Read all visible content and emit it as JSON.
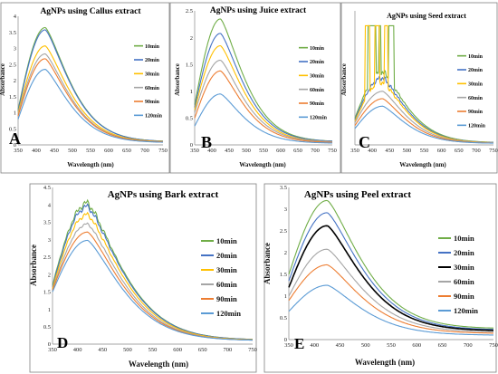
{
  "colors": {
    "10min": "#70ad47",
    "20min": "#4472c4",
    "30min_yellow": "#ffc000",
    "30min_black": "#000000",
    "60min": "#a5a5a5",
    "90min": "#ed7d31",
    "120min": "#5b9bd5",
    "frame": "#7f7f7f"
  },
  "chart_data": [
    {
      "type": "line",
      "panel_letter": "A",
      "title": "AgNPs using Callus extract",
      "xlabel": "Wavelength (nm)",
      "ylabel": "Absorbance",
      "xlim": [
        350,
        750
      ],
      "ylim": [
        0,
        4
      ],
      "xticks": [
        350,
        400,
        450,
        500,
        550,
        600,
        650,
        700,
        750
      ],
      "yticks": [
        0,
        0.5,
        1,
        1.5,
        2,
        2.5,
        3,
        3.5,
        4
      ],
      "legend_position": "right",
      "series": [
        {
          "name": "10min",
          "color_key": "10min",
          "peak_x": 425,
          "peak_y": 3.65,
          "start_y": 1.1,
          "end_y": 0.1,
          "noise": 0
        },
        {
          "name": "20min",
          "color_key": "20min",
          "peak_x": 425,
          "peak_y": 3.58,
          "start_y": 1.05,
          "end_y": 0.1,
          "noise": 0
        },
        {
          "name": "30min",
          "color_key": "30min_yellow",
          "peak_x": 425,
          "peak_y": 3.08,
          "start_y": 1.0,
          "end_y": 0.09,
          "noise": 0
        },
        {
          "name": "60min",
          "color_key": "60min",
          "peak_x": 425,
          "peak_y": 2.83,
          "start_y": 0.95,
          "end_y": 0.08,
          "noise": 0
        },
        {
          "name": "90min",
          "color_key": "90min",
          "peak_x": 425,
          "peak_y": 2.68,
          "start_y": 0.9,
          "end_y": 0.08,
          "noise": 0
        },
        {
          "name": "120min",
          "color_key": "120min",
          "peak_x": 425,
          "peak_y": 2.35,
          "start_y": 0.8,
          "end_y": 0.07,
          "noise": 0
        }
      ]
    },
    {
      "type": "line",
      "panel_letter": "B",
      "title": "AgNPs using Juice extract",
      "xlabel": "Wavelength (nm)",
      "ylabel": "Absorbance",
      "xlim": [
        350,
        750
      ],
      "ylim": [
        0,
        2.5
      ],
      "xticks": [
        350,
        400,
        450,
        500,
        550,
        600,
        650,
        700,
        750
      ],
      "yticks": [
        0,
        0.5,
        1,
        1.5,
        2,
        2.5
      ],
      "legend_position": "right",
      "series": [
        {
          "name": "10min",
          "color_key": "10min",
          "peak_x": 425,
          "peak_y": 2.35,
          "start_y": 0.75,
          "end_y": 0.06,
          "noise": 0
        },
        {
          "name": "20min",
          "color_key": "20min",
          "peak_x": 425,
          "peak_y": 2.08,
          "start_y": 0.7,
          "end_y": 0.06,
          "noise": 0
        },
        {
          "name": "30min",
          "color_key": "30min_yellow",
          "peak_x": 425,
          "peak_y": 1.85,
          "start_y": 0.65,
          "end_y": 0.05,
          "noise": 0
        },
        {
          "name": "60min",
          "color_key": "60min",
          "peak_x": 425,
          "peak_y": 1.58,
          "start_y": 0.6,
          "end_y": 0.05,
          "noise": 0
        },
        {
          "name": "90min",
          "color_key": "90min",
          "peak_x": 425,
          "peak_y": 1.38,
          "start_y": 0.5,
          "end_y": 0.04,
          "noise": 0
        },
        {
          "name": "120min",
          "color_key": "120min",
          "peak_x": 425,
          "peak_y": 0.95,
          "start_y": 0.35,
          "end_y": 0.03,
          "noise": 0
        }
      ]
    },
    {
      "type": "line",
      "panel_letter": "C",
      "title": "AgNPs using Seed extract",
      "xlabel": "Wavelength (nm)",
      "ylabel": "Absorbance",
      "xlim": [
        350,
        750
      ],
      "ylim": [
        0,
        9
      ],
      "xticks": [
        350,
        400,
        450,
        500,
        550,
        600,
        650,
        700,
        750
      ],
      "yticks": [],
      "legend_position": "right",
      "series": [
        {
          "name": "10min",
          "color_key": "10min",
          "peak_x": 430,
          "peak_y": 4.9,
          "start_y": 1.8,
          "end_y": 0.15,
          "noise": 0.25,
          "saturation": [
            [
              388,
              410
            ],
            [
              420,
              425
            ],
            [
              448,
              463
            ]
          ],
          "sat_y": 8.0
        },
        {
          "name": "20min",
          "color_key": "20min",
          "peak_x": 430,
          "peak_y": 4.5,
          "start_y": 1.7,
          "end_y": 0.14,
          "noise": 0.2
        },
        {
          "name": "30min",
          "color_key": "30min_yellow",
          "peak_x": 430,
          "peak_y": 4.2,
          "start_y": 1.6,
          "end_y": 0.13,
          "noise": 0.2,
          "saturation": [
            [
              380,
              393
            ],
            [
              408,
              420
            ],
            [
              435,
              445
            ]
          ],
          "sat_y": 8.0
        },
        {
          "name": "60min",
          "color_key": "60min",
          "peak_x": 430,
          "peak_y": 3.6,
          "start_y": 1.5,
          "end_y": 0.12,
          "noise": 0
        },
        {
          "name": "90min",
          "color_key": "90min",
          "peak_x": 430,
          "peak_y": 3.1,
          "start_y": 1.3,
          "end_y": 0.11,
          "noise": 0
        },
        {
          "name": "120min",
          "color_key": "120min",
          "peak_x": 430,
          "peak_y": 2.6,
          "start_y": 1.1,
          "end_y": 0.1,
          "noise": 0
        }
      ]
    },
    {
      "type": "line",
      "panel_letter": "D",
      "title": "AgNPs using Bark extract",
      "xlabel": "Wavelength (nm)",
      "ylabel": "Absorbance",
      "xlim": [
        350,
        750
      ],
      "ylim": [
        0,
        4.5
      ],
      "xticks": [
        350,
        400,
        450,
        500,
        550,
        600,
        650,
        700,
        750
      ],
      "yticks": [
        0,
        0.5,
        1,
        1.5,
        2,
        2.5,
        3,
        3.5,
        4,
        4.5
      ],
      "legend_position": "right",
      "series": [
        {
          "name": "10min",
          "color_key": "10min",
          "peak_x": 420,
          "peak_y": 4.05,
          "start_y": 1.7,
          "end_y": 0.12,
          "noise": 0.12
        },
        {
          "name": "20min",
          "color_key": "20min",
          "peak_x": 420,
          "peak_y": 3.95,
          "start_y": 1.65,
          "end_y": 0.12,
          "noise": 0.1
        },
        {
          "name": "30min",
          "color_key": "30min_yellow",
          "peak_x": 420,
          "peak_y": 3.72,
          "start_y": 1.6,
          "end_y": 0.11,
          "noise": 0.08
        },
        {
          "name": "60min",
          "color_key": "60min",
          "peak_x": 420,
          "peak_y": 3.45,
          "start_y": 1.55,
          "end_y": 0.1,
          "noise": 0.04
        },
        {
          "name": "90min",
          "color_key": "90min",
          "peak_x": 420,
          "peak_y": 3.22,
          "start_y": 1.55,
          "end_y": 0.1,
          "noise": 0
        },
        {
          "name": "120min",
          "color_key": "120min",
          "peak_x": 420,
          "peak_y": 2.98,
          "start_y": 1.5,
          "end_y": 0.1,
          "noise": 0
        }
      ]
    },
    {
      "type": "line",
      "panel_letter": "E",
      "title": "AgNPs using Peel extract",
      "xlabel": "Wavelength (nm)",
      "ylabel": "Absorbance",
      "xlim": [
        350,
        750
      ],
      "ylim": [
        0,
        3.5
      ],
      "xticks": [
        350,
        400,
        450,
        500,
        550,
        600,
        650,
        700,
        750
      ],
      "yticks": [
        0,
        0.5,
        1,
        1.5,
        2,
        2.5,
        3,
        3.5
      ],
      "legend_position": "right",
      "series": [
        {
          "name": "10min",
          "color_key": "10min",
          "peak_x": 425,
          "peak_y": 3.2,
          "start_y": 1.5,
          "end_y": 0.25,
          "noise": 0
        },
        {
          "name": "20min",
          "color_key": "20min",
          "peak_x": 425,
          "peak_y": 2.92,
          "start_y": 1.35,
          "end_y": 0.22,
          "noise": 0
        },
        {
          "name": "30min",
          "color_key": "30min_black",
          "peak_x": 425,
          "peak_y": 2.62,
          "start_y": 1.2,
          "end_y": 0.2,
          "noise": 0
        },
        {
          "name": "60min",
          "color_key": "60min",
          "peak_x": 425,
          "peak_y": 2.08,
          "start_y": 1.0,
          "end_y": 0.17,
          "noise": 0
        },
        {
          "name": "90min",
          "color_key": "90min",
          "peak_x": 425,
          "peak_y": 1.72,
          "start_y": 0.9,
          "end_y": 0.14,
          "noise": 0
        },
        {
          "name": "120min",
          "color_key": "120min",
          "peak_x": 425,
          "peak_y": 1.25,
          "start_y": 0.65,
          "end_y": 0.1,
          "noise": 0
        }
      ]
    }
  ]
}
